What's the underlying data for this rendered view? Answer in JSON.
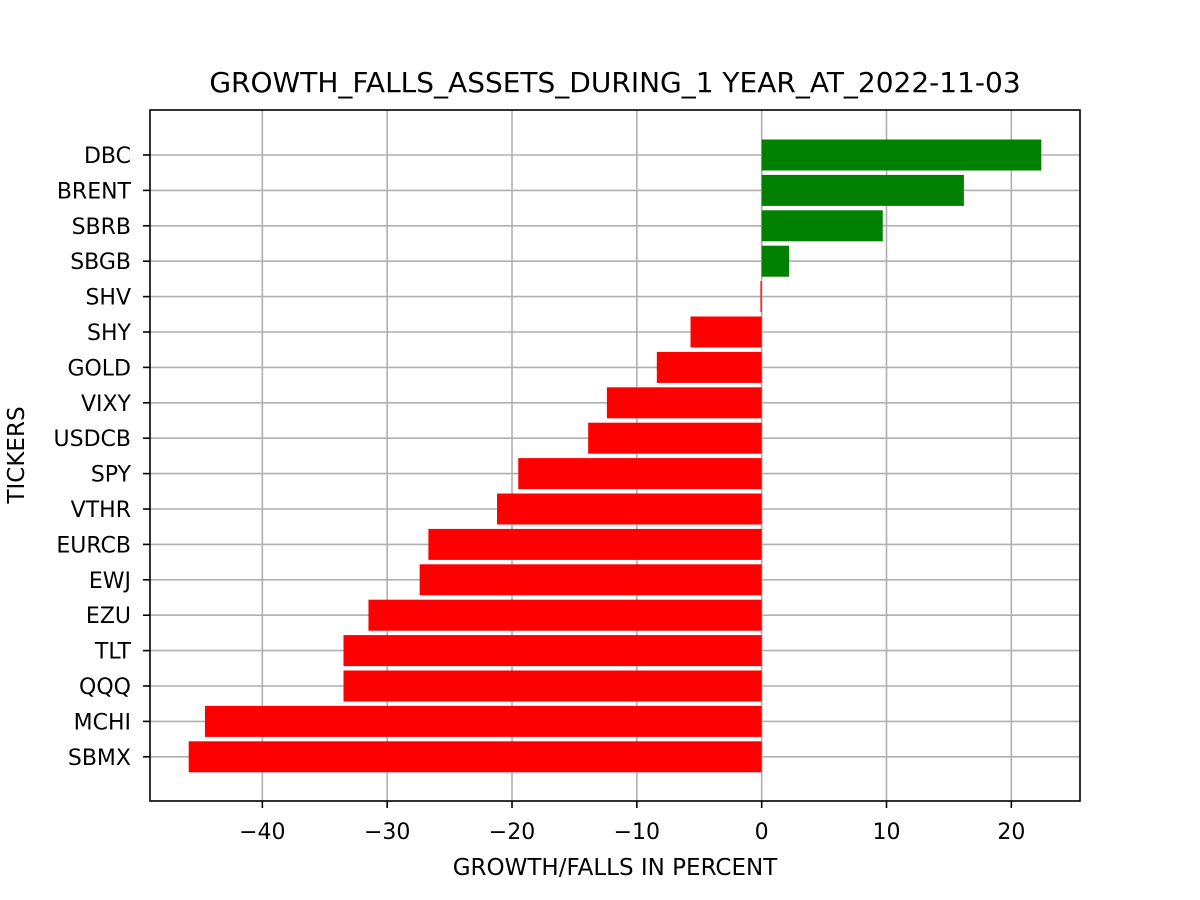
{
  "chart_data": {
    "type": "bar",
    "orientation": "horizontal",
    "title": "GROWTH_FALLS_ASSETS_DURING_1 YEAR_AT_2022-11-03",
    "xlabel": "GROWTH/FALLS IN PERCENT",
    "ylabel": "TICKERS",
    "xlim": [
      -49,
      25.5
    ],
    "xticks": [
      -40,
      -30,
      -20,
      -10,
      0,
      10,
      20
    ],
    "xtick_labels": [
      "−40",
      "−30",
      "−20",
      "−10",
      "0",
      "10",
      "20"
    ],
    "grid": true,
    "positive_color": "#008000",
    "negative_color": "#ff0000",
    "categories": [
      "DBC",
      "BRENT",
      "SBRB",
      "SBGB",
      "SHV",
      "SHY",
      "GOLD",
      "VIXY",
      "USDCB",
      "SPY",
      "VTHR",
      "EURCB",
      "EWJ",
      "EZU",
      "TLT",
      "QQQ",
      "MCHI",
      "SBMX"
    ],
    "values": [
      22.4,
      16.2,
      9.7,
      2.2,
      -0.1,
      -5.7,
      -8.4,
      -12.4,
      -13.9,
      -19.5,
      -21.2,
      -26.7,
      -27.4,
      -31.5,
      -33.5,
      -33.5,
      -44.6,
      -45.9
    ]
  }
}
